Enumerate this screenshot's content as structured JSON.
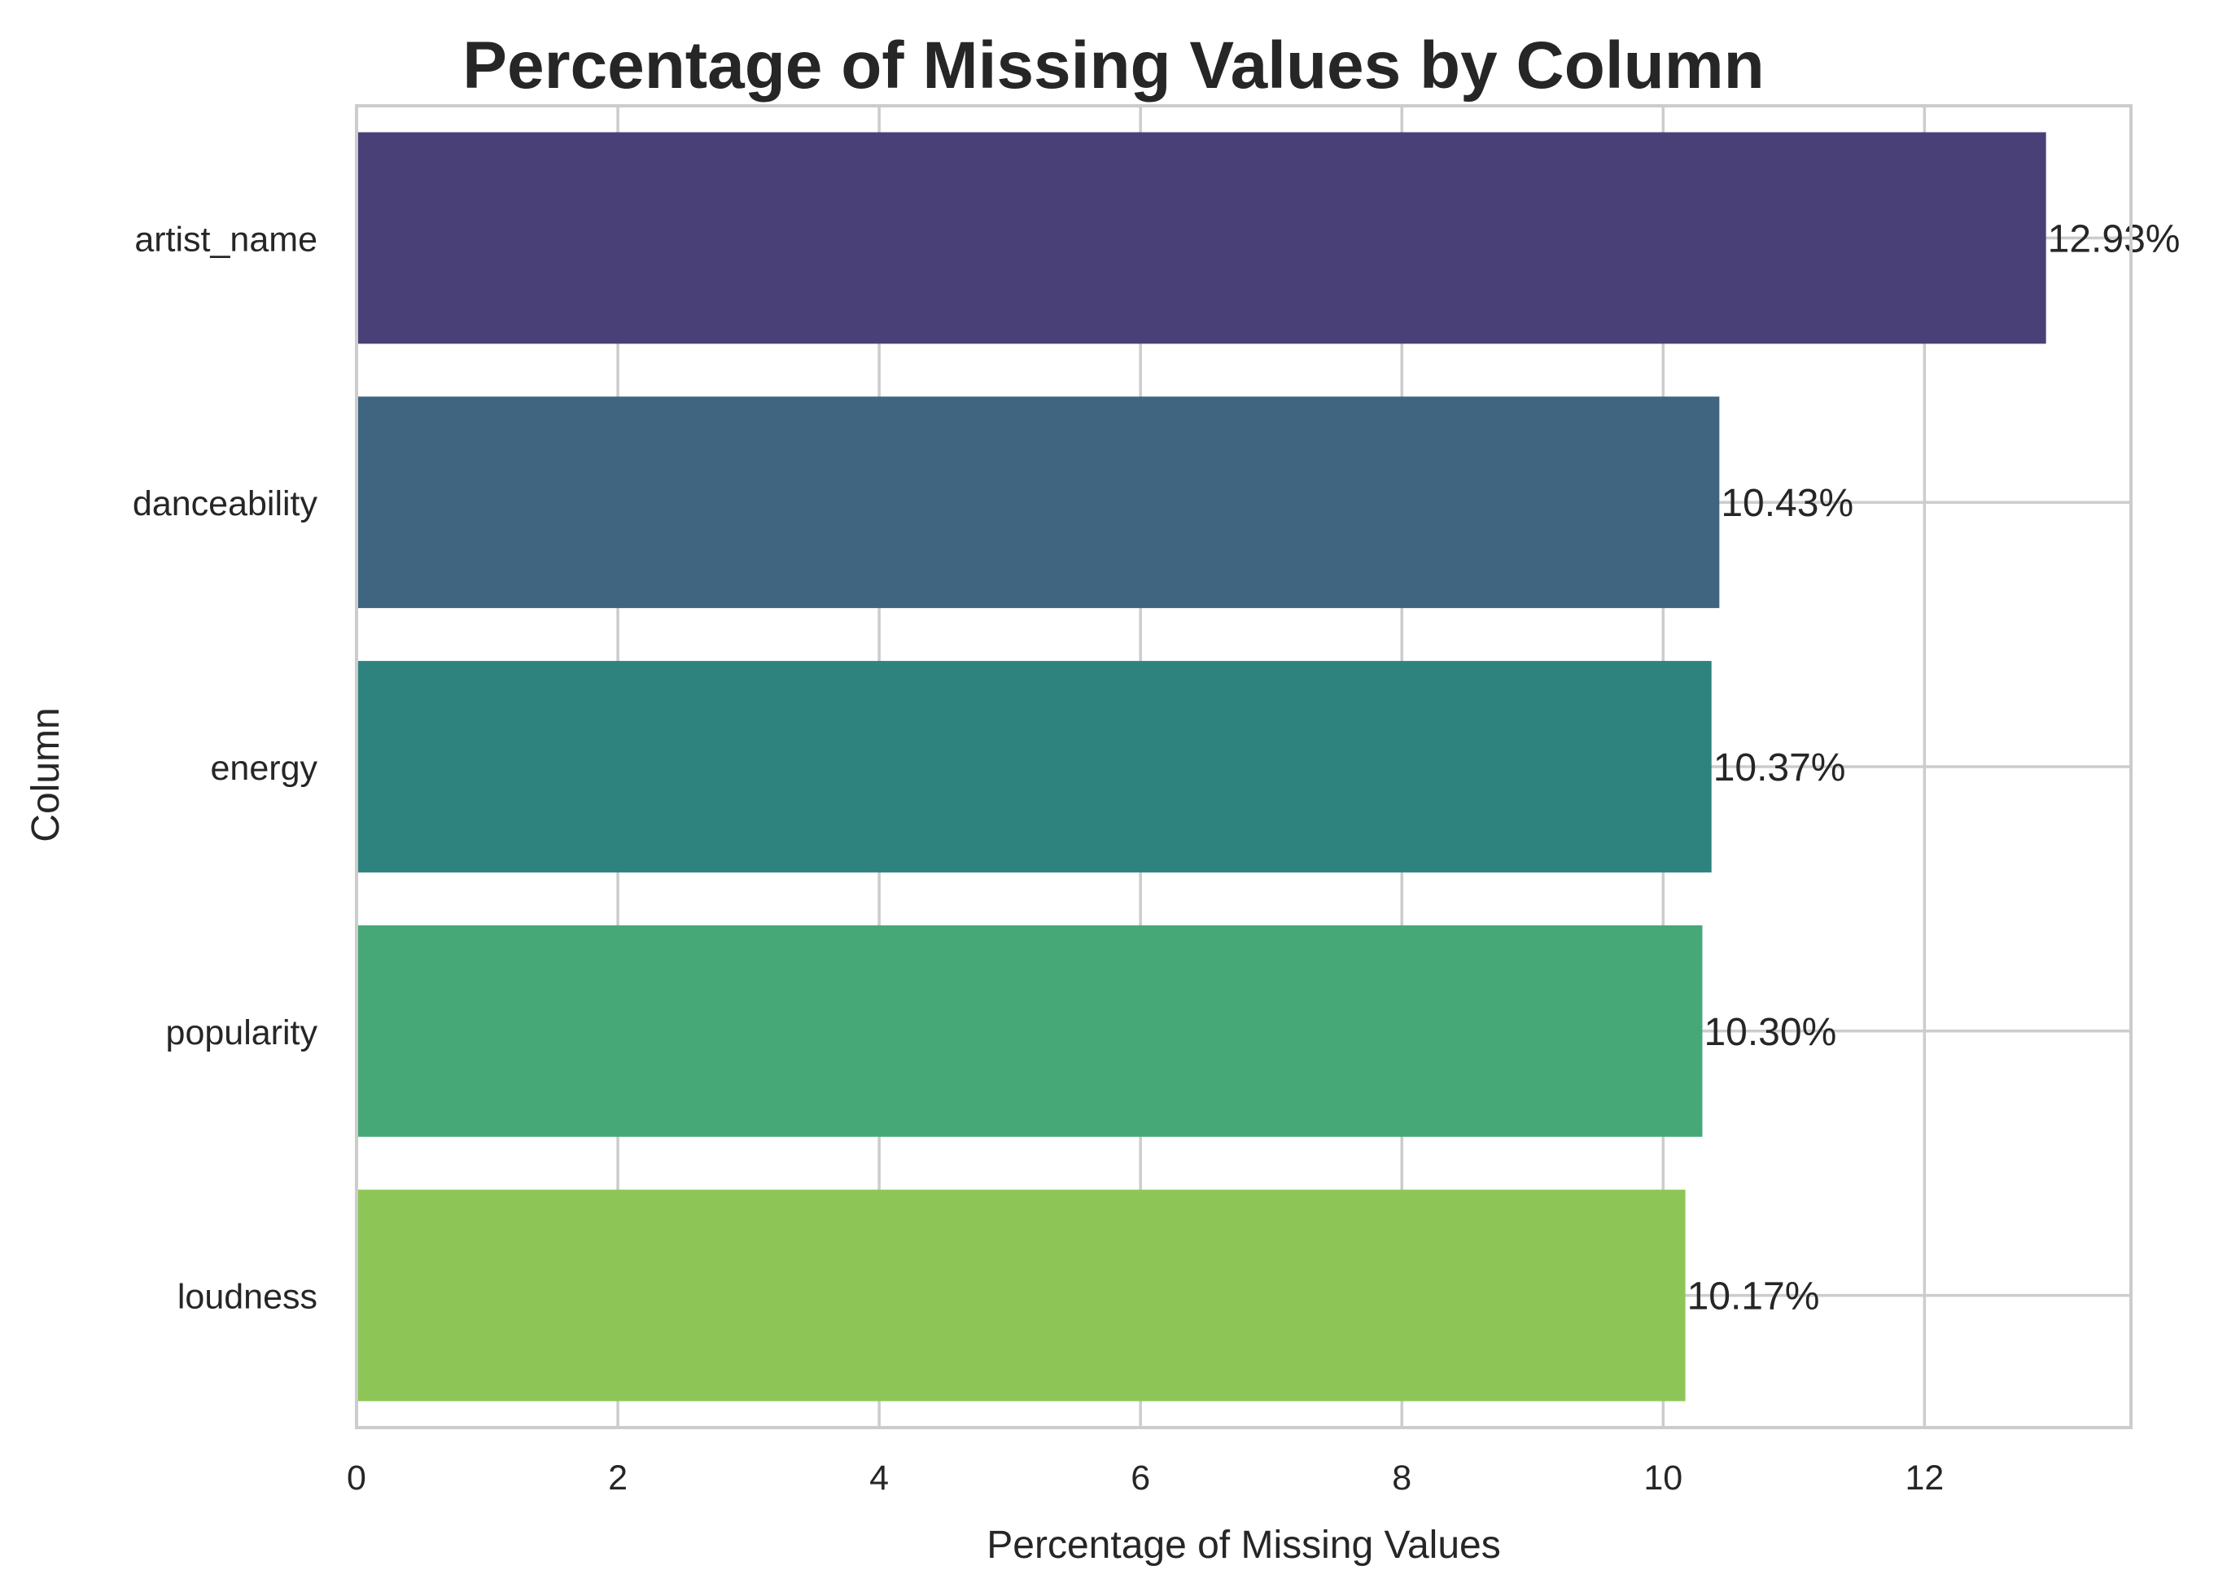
{
  "chart_data": {
    "type": "bar",
    "orientation": "horizontal",
    "title": "Percentage of Missing Values by Column",
    "xlabel": "Percentage of Missing Values",
    "ylabel": "Column",
    "categories": [
      "artist_name",
      "danceability",
      "energy",
      "popularity",
      "loudness"
    ],
    "values": [
      12.93,
      10.43,
      10.37,
      10.3,
      10.17
    ],
    "data_labels": [
      "12.93%",
      "10.43%",
      "10.37%",
      "10.30%",
      "10.17%"
    ],
    "colors": [
      "#4a4078",
      "#3f6580",
      "#2e837e",
      "#47a877",
      "#8dc657"
    ],
    "xlim": [
      0,
      13.58
    ],
    "xticks": [
      0,
      2,
      4,
      6,
      8,
      10,
      12
    ],
    "xtick_labels": [
      "0",
      "2",
      "4",
      "6",
      "8",
      "10",
      "12"
    ],
    "grid": true,
    "grid_color": "#cccccc"
  }
}
